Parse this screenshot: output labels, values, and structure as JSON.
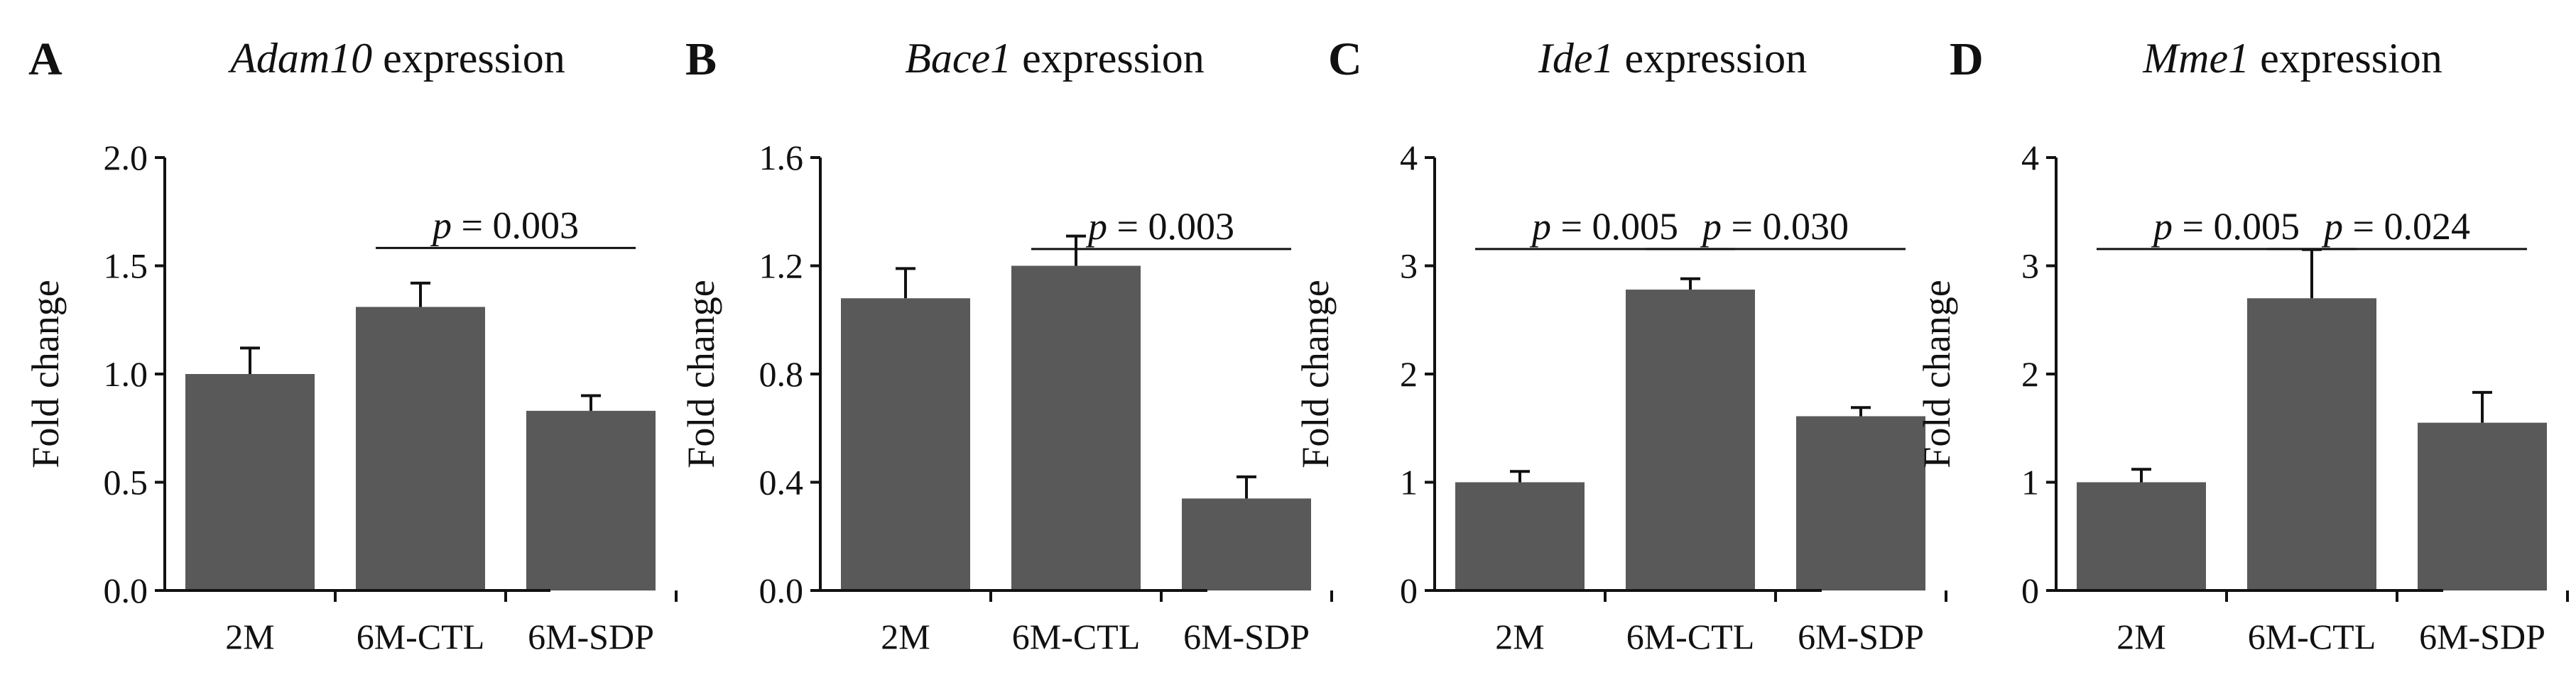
{
  "colors": {
    "bar": "#595959",
    "axis": "#111111",
    "text": "#111111"
  },
  "chart_data": [
    {
      "type": "bar",
      "panel": "A",
      "title_gene": "Adam10",
      "title_suffix": " expression",
      "ylabel": "Fold change",
      "categories": [
        "2M",
        "6M-CTL",
        "6M-SDP"
      ],
      "values": [
        1.0,
        1.31,
        0.83
      ],
      "errors": [
        0.12,
        0.11,
        0.07
      ],
      "ylim": [
        0,
        2.0
      ],
      "yticks": [
        0.0,
        0.5,
        1.0,
        1.5,
        2.0
      ],
      "ytick_labels": [
        "0.0",
        "0.5",
        "1.0",
        "1.5",
        "2.0"
      ],
      "comparisons": [
        {
          "from": 1,
          "to": 2,
          "level": 1.73,
          "p_label": "p",
          "p_value": " = 0.003"
        }
      ]
    },
    {
      "type": "bar",
      "panel": "B",
      "title_gene": "Bace1",
      "title_suffix": " expression",
      "ylabel": "Fold change",
      "categories": [
        "2M",
        "6M-CTL",
        "6M-SDP"
      ],
      "values": [
        1.08,
        1.2,
        0.34
      ],
      "errors": [
        0.11,
        0.11,
        0.08
      ],
      "ylim": [
        0,
        1.6
      ],
      "yticks": [
        0.0,
        0.4,
        0.8,
        1.2,
        1.6
      ],
      "ytick_labels": [
        "0.0",
        "0.4",
        "0.8",
        "1.2",
        "1.6"
      ],
      "comparisons": [
        {
          "from": 1,
          "to": 2,
          "level": 1.38,
          "p_label": "p",
          "p_value": " = 0.003"
        }
      ]
    },
    {
      "type": "bar",
      "panel": "C",
      "title_gene": "Ide1",
      "title_suffix": " expression",
      "ylabel": "Fold change",
      "categories": [
        "2M",
        "6M-CTL",
        "6M-SDP"
      ],
      "values": [
        1.0,
        2.78,
        1.61
      ],
      "errors": [
        0.1,
        0.1,
        0.08
      ],
      "ylim": [
        0,
        4
      ],
      "yticks": [
        0,
        1,
        2,
        3,
        4
      ],
      "ytick_labels": [
        "0",
        "1",
        "2",
        "3",
        "4"
      ],
      "comparisons": [
        {
          "from": 0,
          "to": 1,
          "level": 3.45,
          "p_label": "p",
          "p_value": " = 0.005"
        },
        {
          "from": 1,
          "to": 2,
          "level": 3.45,
          "p_label": "p",
          "p_value": " = 0.030"
        }
      ]
    },
    {
      "type": "bar",
      "panel": "D",
      "title_gene": "Mme1",
      "title_suffix": " expression",
      "ylabel": "Fold change",
      "categories": [
        "2M",
        "6M-CTL",
        "6M-SDP"
      ],
      "values": [
        1.0,
        2.7,
        1.55
      ],
      "errors": [
        0.12,
        0.45,
        0.28
      ],
      "ylim": [
        0,
        4
      ],
      "yticks": [
        0,
        1,
        2,
        3,
        4
      ],
      "ytick_labels": [
        "0",
        "1",
        "2",
        "3",
        "4"
      ],
      "comparisons": [
        {
          "from": 0,
          "to": 1,
          "level": 3.45,
          "p_label": "p",
          "p_value": " = 0.005"
        },
        {
          "from": 1,
          "to": 2,
          "level": 3.45,
          "p_label": "p",
          "p_value": " = 0.024"
        }
      ]
    }
  ]
}
